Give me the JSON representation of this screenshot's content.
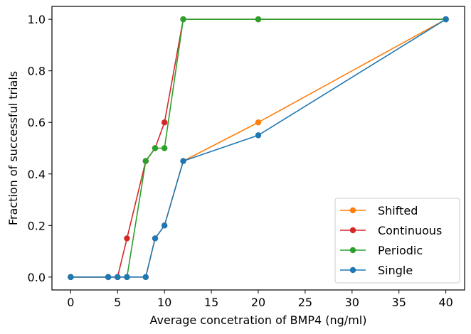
{
  "chart_data": {
    "type": "line",
    "title": "",
    "xlabel": "Average concetration of BMP4 (ng/ml)",
    "ylabel": "Fraction of successful trials",
    "xlim": [
      -2,
      42
    ],
    "ylim": [
      -0.05,
      1.05
    ],
    "xticks": [
      0,
      5,
      10,
      15,
      20,
      25,
      30,
      35,
      40
    ],
    "xtick_labels": [
      "0",
      "5",
      "10",
      "15",
      "20",
      "25",
      "30",
      "35",
      "40"
    ],
    "yticks": [
      0.0,
      0.2,
      0.4,
      0.6,
      0.8,
      1.0
    ],
    "ytick_labels": [
      "0.0",
      "0.2",
      "0.4",
      "0.6",
      "0.8",
      "1.0"
    ],
    "grid": false,
    "legend_position": "bottom-right",
    "x": [
      0,
      4,
      5,
      6,
      8,
      9,
      10,
      12,
      20,
      40
    ],
    "series": [
      {
        "name": "Shifted",
        "color": "#ff7f0e",
        "values": [
          0,
          0,
          0,
          0,
          0,
          0.15,
          0.2,
          0.45,
          0.6,
          1.0
        ]
      },
      {
        "name": "Continuous",
        "color": "#d62728",
        "values": [
          0,
          0,
          0,
          0.15,
          0.45,
          0.5,
          0.6,
          1.0,
          1.0,
          1.0
        ]
      },
      {
        "name": "Periodic",
        "color": "#2ca02c",
        "values": [
          0,
          0,
          0,
          0,
          0.45,
          0.5,
          0.5,
          1.0,
          1.0,
          1.0
        ]
      },
      {
        "name": "Single",
        "color": "#1f77b4",
        "values": [
          0,
          0,
          0,
          0,
          0,
          0.15,
          0.2,
          0.45,
          0.55,
          1.0
        ]
      }
    ]
  }
}
